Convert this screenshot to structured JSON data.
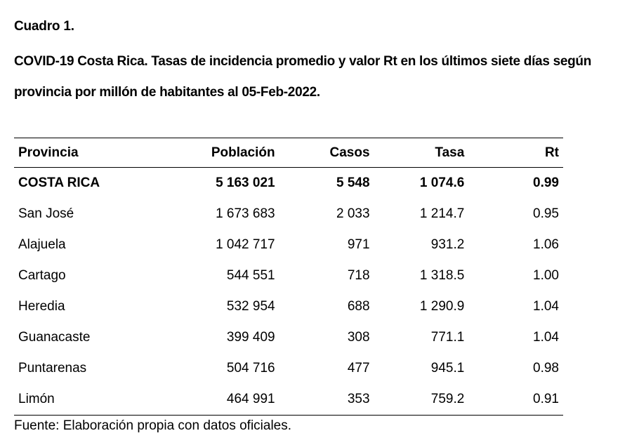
{
  "caption": {
    "label": "Cuadro 1.",
    "title": "COVID-19 Costa Rica. Tasas de incidencia promedio y valor Rt en los últimos siete días según provincia por millón de habitantes al 05-Feb-2022."
  },
  "table": {
    "headers": {
      "provincia": "Provincia",
      "poblacion": "Población",
      "casos": "Casos",
      "tasa": "Tasa",
      "rt": "Rt"
    },
    "rows": [
      {
        "provincia": "COSTA RICA",
        "poblacion": "5 163 021",
        "casos": "5 548",
        "tasa": "1 074.6",
        "rt": "0.99"
      },
      {
        "provincia": "San José",
        "poblacion": "1 673 683",
        "casos": "2 033",
        "tasa": "1 214.7",
        "rt": "0.95"
      },
      {
        "provincia": "Alajuela",
        "poblacion": "1 042 717",
        "casos": "971",
        "tasa": "931.2",
        "rt": "1.06"
      },
      {
        "provincia": "Cartago",
        "poblacion": "544 551",
        "casos": "718",
        "tasa": "1 318.5",
        "rt": "1.00"
      },
      {
        "provincia": "Heredia",
        "poblacion": "532 954",
        "casos": "688",
        "tasa": "1 290.9",
        "rt": "1.04"
      },
      {
        "provincia": "Guanacaste",
        "poblacion": "399 409",
        "casos": "308",
        "tasa": "771.1",
        "rt": "1.04"
      },
      {
        "provincia": "Puntarenas",
        "poblacion": "504 716",
        "casos": "477",
        "tasa": "945.1",
        "rt": "0.98"
      },
      {
        "provincia": "Limón",
        "poblacion": "464 991",
        "casos": "353",
        "tasa": "759.2",
        "rt": "0.91"
      }
    ]
  },
  "source": "Fuente: Elaboración propia con datos oficiales."
}
